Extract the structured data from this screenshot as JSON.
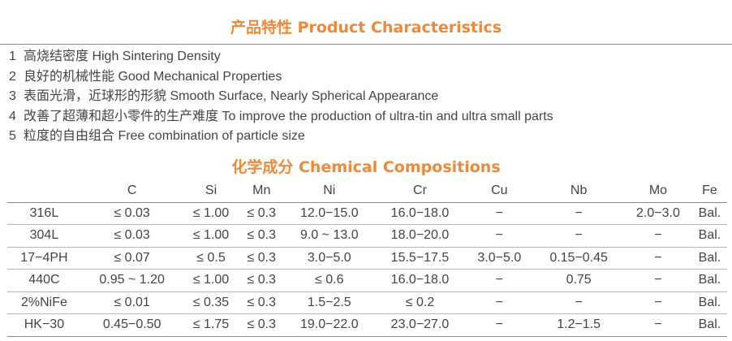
{
  "product_characteristics": {
    "title": "产品特性 Product Characteristics",
    "items": [
      {
        "num": "1",
        "text": "高烧结密度 High Sintering Density"
      },
      {
        "num": "2",
        "text": "良好的机械性能 Good Mechanical Properties"
      },
      {
        "num": "3",
        "text": "表面光滑，近球形的形貌 Smooth Surface, Nearly Spherical Appearance"
      },
      {
        "num": "4",
        "text": "改善了超薄和超小零件的生产难度 To improve the production of ultra-tin and ultra small parts"
      },
      {
        "num": "5",
        "text": "粒度的自由组合 Free combination of particle size"
      }
    ]
  },
  "chemical_compositions": {
    "title": "化学成分 Chemical Compositions",
    "columns": [
      "",
      "C",
      "Si",
      "Mn",
      "Ni",
      "Cr",
      "Cu",
      "Nb",
      "Mo",
      "Fe"
    ],
    "rows": [
      [
        "316L",
        "≤ 0.03",
        "≤ 1.00",
        "≤ 0.3",
        "12.0−15.0",
        "16.0−18.0",
        "−",
        "−",
        "2.0−3.0",
        "Bal."
      ],
      [
        "304L",
        "≤ 0.03",
        "≤ 1.00",
        "≤ 0.3",
        "9.0 ~ 13.0",
        "18.0−20.0",
        "−",
        "−",
        "−",
        "Bal."
      ],
      [
        "17−4PH",
        "≤ 0.07",
        "≤ 0.5",
        "≤ 0.3",
        "3.0−5.0",
        "15.5−17.5",
        "3.0−5.0",
        "0.15−0.45",
        "−",
        "Bal."
      ],
      [
        "440C",
        "0.95 ~ 1.20",
        "≤ 1.00",
        "≤ 0.3",
        "≤ 0.6",
        "16.0−18.0",
        "−",
        "0.75",
        "−",
        "Bal."
      ],
      [
        "2%NiFe",
        "≤ 0.01",
        "≤ 0.35",
        "≤ 0.3",
        "1.5−2.5",
        "≤ 0.2",
        "−",
        "−",
        "−",
        "Bal."
      ],
      [
        "HK−30",
        "0.45−0.50",
        "≤ 1.75",
        "≤ 0.3",
        "19.0−22.0",
        "23.0−27.0",
        "−",
        "1.2−1.5",
        "−",
        "Bal."
      ]
    ]
  },
  "colors": {
    "title": "#ec8a3a",
    "text": "#444444",
    "rule": "#8a8a8a"
  }
}
